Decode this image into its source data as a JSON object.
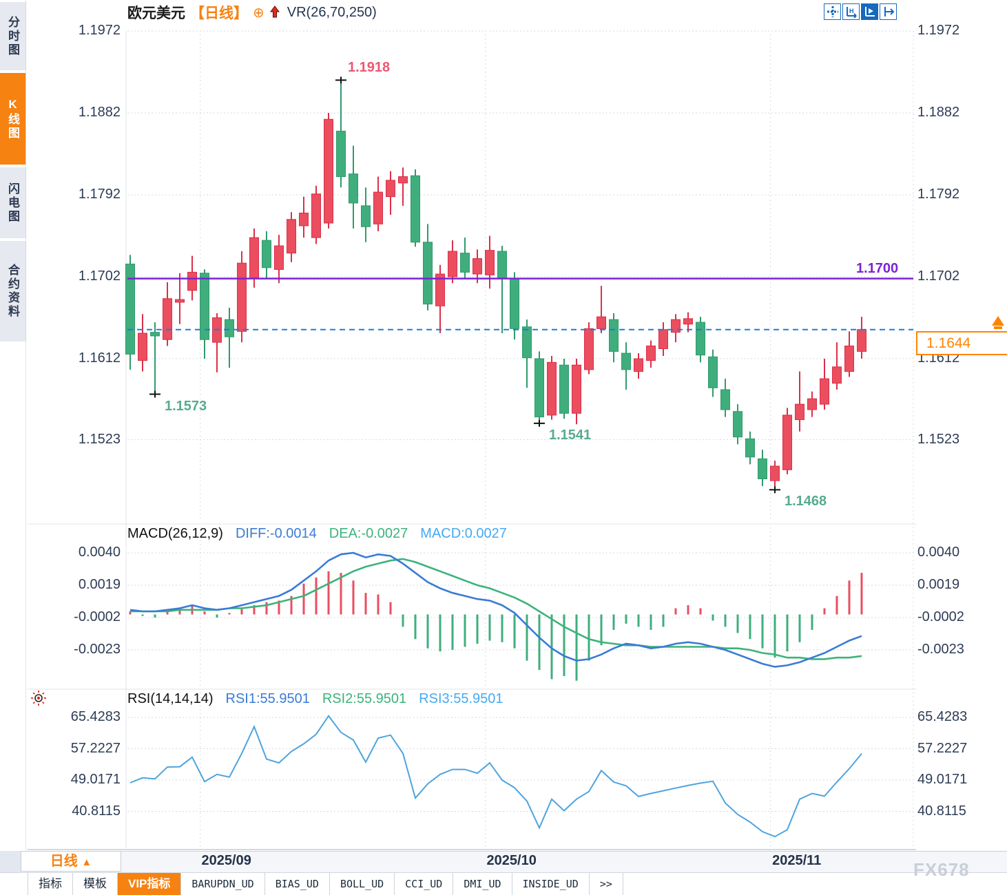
{
  "sidebar": {
    "items": [
      {
        "label": "分时图",
        "active": false
      },
      {
        "label": "K线图",
        "active": true
      },
      {
        "label": "闪电图",
        "active": false
      },
      {
        "label": "合约资料",
        "active": false
      }
    ]
  },
  "header": {
    "symbol": "欧元美元",
    "period_tag": "【日线】",
    "circle_plus": "⊕",
    "overlay": "VR(26,70,250)"
  },
  "toolbar": {
    "icons": [
      "crosshair-icon",
      "axis-range-icon",
      "axis-play-icon",
      "pan-right-icon"
    ]
  },
  "price_panel": {
    "hline_label": "1.1700",
    "last_price_label": "1.1644",
    "high_label": "1.1918",
    "low_labels": [
      "1.1573",
      "1.1541",
      "1.1468"
    ]
  },
  "macd_panel": {
    "title": "MACD(26,12,9)",
    "diff_label": "DIFF:-0.0014",
    "dea_label": "DEA:-0.0027",
    "macd_label": "MACD:0.0027"
  },
  "rsi_panel": {
    "title": "RSI(14,14,14)",
    "rsi1_label": "RSI1:55.9501",
    "rsi2_label": "RSI2:55.9501",
    "rsi3_label": "RSI3:55.9501"
  },
  "footer": {
    "period_label": "日线",
    "period_arrow": "▲",
    "tabs": [
      {
        "label": "指标",
        "active": false
      },
      {
        "label": "模板",
        "active": false
      },
      {
        "label": "VIP指标",
        "active": true
      },
      {
        "label": "BARUPDN_UD",
        "active": false
      },
      {
        "label": "BIAS_UD",
        "active": false
      },
      {
        "label": "BOLL_UD",
        "active": false
      },
      {
        "label": "CCI_UD",
        "active": false
      },
      {
        "label": "DMI_UD",
        "active": false
      },
      {
        "label": "INSIDE_UD",
        "active": false
      },
      {
        "label": ">>",
        "active": false
      }
    ]
  },
  "watermark": "FX678",
  "colors": {
    "up": "#ea4e5f",
    "up_stroke": "#db2f48",
    "down": "#3fae7c",
    "down_stroke": "#2f9a6b",
    "diff_line": "#3a7bd5",
    "dea_line": "#3cb37a",
    "rsi_line": "#4da4de",
    "hline_purple": "#7c21d8",
    "last_dashed_blue": "#1b7ce0",
    "accent_orange": "#ff8400",
    "grid": "#d6d9e0",
    "axis_text": "#2d3c55"
  },
  "chart_data": [
    {
      "type": "candlestick",
      "title": "欧元美元 日线",
      "y_ticks": [
        1.1972,
        1.1882,
        1.1792,
        1.1702,
        1.1612,
        1.1523
      ],
      "x_month_labels": [
        "2025/09",
        "2025/10",
        "2025/11"
      ],
      "x_month_index": [
        5.65,
        28.65,
        51.65
      ],
      "hline": 1.17,
      "last_price": 1.1644,
      "annotations": {
        "high": {
          "index": 17,
          "value": 1.1918
        },
        "lows": [
          {
            "index": 2,
            "value": 1.1573
          },
          {
            "index": 33,
            "value": 1.1541
          },
          {
            "index": 52,
            "value": 1.1468
          }
        ]
      },
      "ohlc": [
        [
          1.1716,
          1.1726,
          1.16,
          1.1617
        ],
        [
          1.161,
          1.1661,
          1.1598,
          1.164
        ],
        [
          1.1641,
          1.1652,
          1.1573,
          1.1637
        ],
        [
          1.1633,
          1.1696,
          1.1626,
          1.1678
        ],
        [
          1.1674,
          1.1706,
          1.165,
          1.1677
        ],
        [
          1.1687,
          1.1725,
          1.1676,
          1.1707
        ],
        [
          1.1706,
          1.171,
          1.1612,
          1.1633
        ],
        [
          1.163,
          1.1662,
          1.1597,
          1.1657
        ],
        [
          1.1655,
          1.1668,
          1.1602,
          1.1636
        ],
        [
          1.1642,
          1.173,
          1.163,
          1.1717
        ],
        [
          1.17,
          1.1755,
          1.169,
          1.1745
        ],
        [
          1.1742,
          1.1752,
          1.17,
          1.1712
        ],
        [
          1.171,
          1.1748,
          1.1695,
          1.1736
        ],
        [
          1.1728,
          1.1773,
          1.1718,
          1.1765
        ],
        [
          1.1758,
          1.179,
          1.1745,
          1.1772
        ],
        [
          1.1745,
          1.1802,
          1.1738,
          1.1793
        ],
        [
          1.1761,
          1.1882,
          1.1755,
          1.1875
        ],
        [
          1.1862,
          1.1918,
          1.18,
          1.1812
        ],
        [
          1.1815,
          1.1846,
          1.1755,
          1.1783
        ],
        [
          1.178,
          1.18,
          1.174,
          1.1757
        ],
        [
          1.176,
          1.1812,
          1.1752,
          1.1795
        ],
        [
          1.179,
          1.1818,
          1.177,
          1.1808
        ],
        [
          1.1805,
          1.1822,
          1.178,
          1.1812
        ],
        [
          1.1813,
          1.182,
          1.1735,
          1.174
        ],
        [
          1.174,
          1.176,
          1.1665,
          1.1672
        ],
        [
          1.167,
          1.1715,
          1.164,
          1.1705
        ],
        [
          1.1702,
          1.1742,
          1.1695,
          1.173
        ],
        [
          1.1728,
          1.1745,
          1.17,
          1.1707
        ],
        [
          1.1705,
          1.1732,
          1.1695,
          1.1722
        ],
        [
          1.1704,
          1.1747,
          1.1689,
          1.1731
        ],
        [
          1.173,
          1.1736,
          1.164,
          1.17
        ],
        [
          1.17,
          1.1707,
          1.1633,
          1.1645
        ],
        [
          1.1647,
          1.1655,
          1.158,
          1.1613
        ],
        [
          1.1612,
          1.162,
          1.1541,
          1.1548
        ],
        [
          1.155,
          1.1615,
          1.1545,
          1.1608
        ],
        [
          1.1605,
          1.1612,
          1.1546,
          1.1552
        ],
        [
          1.1552,
          1.1612,
          1.154,
          1.1605
        ],
        [
          1.16,
          1.1652,
          1.1595,
          1.1645
        ],
        [
          1.1645,
          1.1692,
          1.164,
          1.1658
        ],
        [
          1.1655,
          1.1662,
          1.1608,
          1.162
        ],
        [
          1.1618,
          1.163,
          1.1578,
          1.16
        ],
        [
          1.1598,
          1.1618,
          1.159,
          1.1612
        ],
        [
          1.161,
          1.1632,
          1.1602,
          1.1626
        ],
        [
          1.1623,
          1.1652,
          1.1615,
          1.1644
        ],
        [
          1.1641,
          1.1661,
          1.163,
          1.1655
        ],
        [
          1.165,
          1.1663,
          1.1641,
          1.1656
        ],
        [
          1.1652,
          1.1658,
          1.1608,
          1.1616
        ],
        [
          1.1614,
          1.1622,
          1.157,
          1.158
        ],
        [
          1.1578,
          1.159,
          1.1548,
          1.1556
        ],
        [
          1.1554,
          1.1562,
          1.1518,
          1.1526
        ],
        [
          1.1524,
          1.1532,
          1.1496,
          1.1504
        ],
        [
          1.1502,
          1.1512,
          1.1472,
          1.148
        ],
        [
          1.1478,
          1.15,
          1.1468,
          1.1494
        ],
        [
          1.149,
          1.1558,
          1.1485,
          1.155
        ],
        [
          1.1545,
          1.1598,
          1.1532,
          1.1562
        ],
        [
          1.1556,
          1.1576,
          1.1548,
          1.1568
        ],
        [
          1.1562,
          1.1612,
          1.1556,
          1.159
        ],
        [
          1.1585,
          1.163,
          1.1578,
          1.1603
        ],
        [
          1.1598,
          1.1642,
          1.1592,
          1.1626
        ],
        [
          1.162,
          1.1658,
          1.1612,
          1.1644
        ]
      ]
    },
    {
      "type": "bar",
      "title": "MACD(26,12,9)",
      "y_ticks": [
        0.004,
        0.0019,
        -0.0002,
        -0.0023
      ],
      "series": [
        {
          "name": "DIFF",
          "values": [
            0.0003,
            0.0002,
            0.0002,
            0.0003,
            0.0004,
            0.0006,
            0.0004,
            0.0003,
            0.0004,
            0.0006,
            0.0008,
            0.001,
            0.0012,
            0.0016,
            0.0022,
            0.0028,
            0.0035,
            0.0039,
            0.004,
            0.0037,
            0.0039,
            0.0038,
            0.0033,
            0.0027,
            0.0021,
            0.0017,
            0.0014,
            0.0012,
            0.001,
            0.0009,
            0.0006,
            0.0001,
            -0.0007,
            -0.0015,
            -0.0022,
            -0.0027,
            -0.003,
            -0.0029,
            -0.0026,
            -0.0022,
            -0.0019,
            -0.002,
            -0.0022,
            -0.0021,
            -0.0019,
            -0.0018,
            -0.0019,
            -0.0021,
            -0.0023,
            -0.0026,
            -0.0029,
            -0.0032,
            -0.0034,
            -0.0033,
            -0.0031,
            -0.0028,
            -0.0025,
            -0.0021,
            -0.0017,
            -0.0014
          ]
        },
        {
          "name": "DEA",
          "values": [
            0.0002,
            0.0002,
            0.0002,
            0.0002,
            0.0003,
            0.0003,
            0.0003,
            0.0003,
            0.0004,
            0.0004,
            0.0005,
            0.0006,
            0.0008,
            0.001,
            0.0012,
            0.0016,
            0.002,
            0.0024,
            0.0028,
            0.0031,
            0.0033,
            0.0035,
            0.0036,
            0.0034,
            0.0031,
            0.0028,
            0.0025,
            0.0022,
            0.0019,
            0.0017,
            0.0014,
            0.0011,
            0.0007,
            0.0002,
            -0.0003,
            -0.0008,
            -0.0012,
            -0.0016,
            -0.0018,
            -0.0019,
            -0.002,
            -0.002,
            -0.0021,
            -0.0021,
            -0.0021,
            -0.0021,
            -0.0021,
            -0.0021,
            -0.0022,
            -0.0022,
            -0.0023,
            -0.0025,
            -0.0026,
            -0.0028,
            -0.0028,
            -0.0029,
            -0.0029,
            -0.0028,
            -0.0028,
            -0.0027
          ]
        },
        {
          "name": "MACD",
          "values": [
            0.0002,
            -0.0001,
            -0.0002,
            0.0002,
            0.0003,
            0.0006,
            0.0002,
            -0.0002,
            0.0001,
            0.0004,
            0.0006,
            0.0008,
            0.0009,
            0.0012,
            0.002,
            0.0024,
            0.0028,
            0.0027,
            0.0022,
            0.0014,
            0.0013,
            0.0008,
            -0.0008,
            -0.0016,
            -0.0022,
            -0.0024,
            -0.0023,
            -0.0021,
            -0.0019,
            -0.0017,
            -0.0018,
            -0.0022,
            -0.003,
            -0.0036,
            -0.0042,
            -0.004,
            -0.0043,
            -0.003,
            -0.002,
            -0.001,
            -0.0006,
            -0.0008,
            -0.001,
            -0.0008,
            0.0004,
            0.0006,
            0.0004,
            -0.0004,
            -0.0008,
            -0.0012,
            -0.0016,
            -0.0022,
            -0.0028,
            -0.0024,
            -0.0018,
            -0.001,
            0.0004,
            0.0012,
            0.0022,
            0.0027
          ]
        }
      ]
    },
    {
      "type": "line",
      "title": "RSI(14,14,14)",
      "y_ticks": [
        65.4283,
        57.2227,
        49.0171,
        40.8115
      ],
      "series": [
        {
          "name": "RSI1",
          "values": [
            48.3,
            49.6,
            49.3,
            52.4,
            52.5,
            55.0,
            48.6,
            50.5,
            49.8,
            56.0,
            63.0,
            54.5,
            53.5,
            56.5,
            58.5,
            61.0,
            65.8,
            61.5,
            59.5,
            53.7,
            60.0,
            60.8,
            56.0,
            44.3,
            48.0,
            50.5,
            51.8,
            51.8,
            50.8,
            53.5,
            49.0,
            47.0,
            43.5,
            36.5,
            44.0,
            41.0,
            44.0,
            46.0,
            51.5,
            48.5,
            47.5,
            44.7,
            45.5,
            46.2,
            46.9,
            47.6,
            48.2,
            48.7,
            43.0,
            40.0,
            38.0,
            35.5,
            34.2,
            36.0,
            44.0,
            45.5,
            44.8,
            48.5,
            52.0,
            55.95
          ]
        }
      ]
    }
  ]
}
